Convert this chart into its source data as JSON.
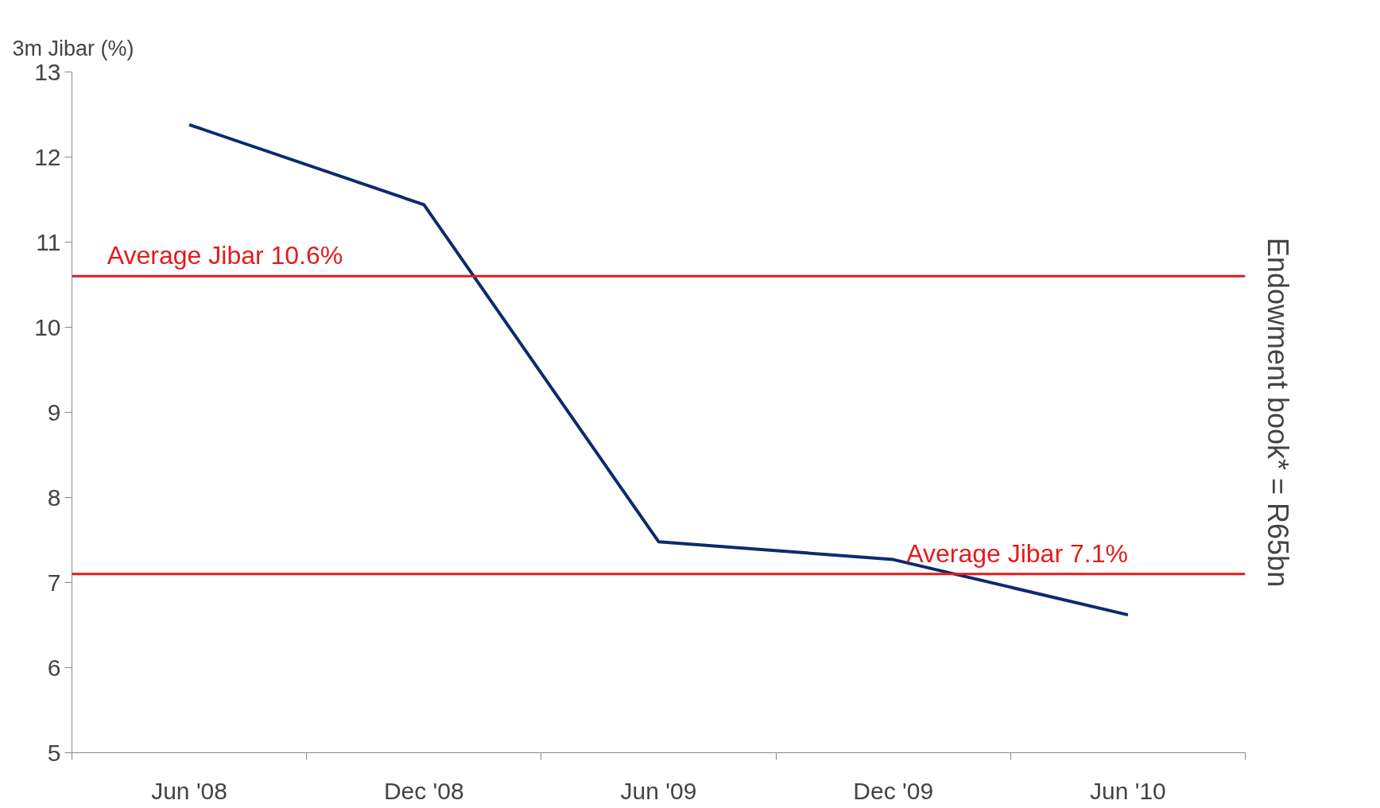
{
  "chart_data": {
    "type": "line",
    "ylabel": "3m Jibar (%)",
    "categories": [
      "Jun '08",
      "Dec '08",
      "Jun '09",
      "Dec '09",
      "Jun '10"
    ],
    "series": [
      {
        "color": "#0d2a6e",
        "values": [
          12.38,
          11.44,
          7.48,
          7.27,
          6.62
        ]
      }
    ],
    "ylim": [
      5,
      13
    ],
    "yticks": [
      5,
      6,
      7,
      8,
      9,
      10,
      11,
      12,
      13
    ],
    "ref_lines": [
      {
        "axis": "y",
        "value": 10.6,
        "label": "Average Jibar   10.6%",
        "color": "#e31b1b"
      },
      {
        "axis": "y",
        "value": 7.1,
        "label": "Average Jibar 7.1%",
        "color": "#e31b1b"
      }
    ],
    "annotations": [
      "Endowment book* = R65bn"
    ],
    "grid": false
  }
}
